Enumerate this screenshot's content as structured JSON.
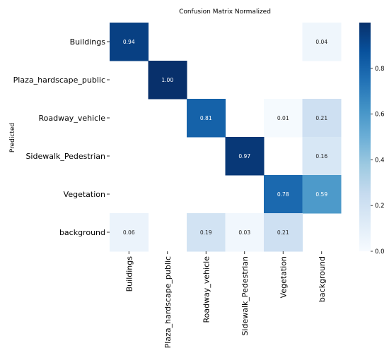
{
  "chart_data": {
    "type": "heatmap",
    "title": "Confusion Matrix Normalized",
    "xlabel": "",
    "ylabel": "Predicted",
    "x_categories": [
      "Buildings",
      "Plaza_hardscape_public",
      "Roadway_vehicle",
      "Sidewalk_Pedestrian",
      "Vegetation",
      "background"
    ],
    "y_categories": [
      "Buildings",
      "Plaza_hardscape_public",
      "Roadway_vehicle",
      "Sidewalk_Pedestrian",
      "Vegetation",
      "background"
    ],
    "values": [
      [
        0.94,
        null,
        null,
        null,
        null,
        0.04
      ],
      [
        null,
        1.0,
        null,
        null,
        null,
        null
      ],
      [
        null,
        null,
        0.81,
        null,
        0.01,
        0.21
      ],
      [
        null,
        null,
        null,
        0.97,
        null,
        0.16
      ],
      [
        null,
        null,
        null,
        null,
        0.78,
        0.59
      ],
      [
        0.06,
        null,
        0.19,
        0.03,
        0.21,
        null
      ]
    ],
    "colorbar": {
      "min": 0.0,
      "max": 1.0,
      "ticks": [
        "0.0",
        "0.2",
        "0.4",
        "0.6",
        "0.8"
      ]
    },
    "colormap": [
      "#f7fbff",
      "#deebf7",
      "#c6dbef",
      "#9ecae1",
      "#6baed6",
      "#4292c6",
      "#2171b5",
      "#08519c",
      "#08306b"
    ]
  }
}
